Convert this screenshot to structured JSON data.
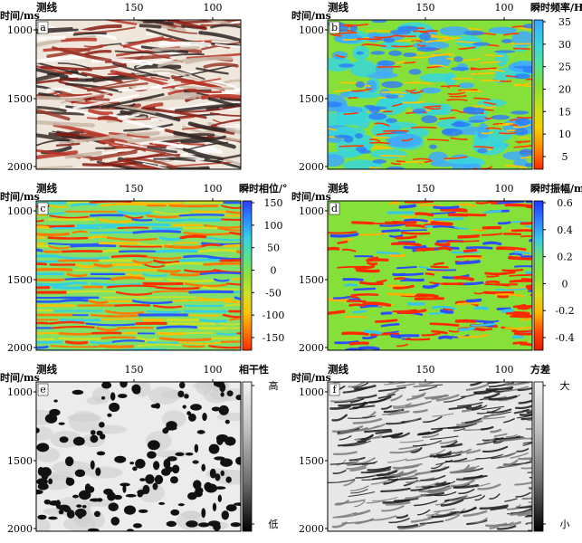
{
  "panels": [
    {
      "id": "a",
      "x_axis_label": "测线",
      "x_ticks": [
        "150",
        "100"
      ],
      "y_axis_label": "时间/ms",
      "y_ticks": [
        "1000",
        "1500",
        "2000"
      ],
      "colorbar": null,
      "style": "seismic"
    },
    {
      "id": "b",
      "x_axis_label": "测线",
      "x_ticks": [
        "150",
        "100"
      ],
      "y_axis_label": "时间/ms",
      "y_ticks": [
        "1000",
        "1500",
        "2000"
      ],
      "colorbar": {
        "title": "瞬时频率/Hz",
        "ticks": [
          "35",
          "30",
          "25",
          "20",
          "15",
          "10",
          "5"
        ],
        "gradient": [
          "#3aa6ff",
          "#38d0e0",
          "#4fe3a0",
          "#7fe03a",
          "#b9e21e",
          "#f2d400",
          "#ff8a00",
          "#ff2a00"
        ]
      },
      "style": "freq"
    },
    {
      "id": "c",
      "x_axis_label": "测线",
      "x_ticks": [
        "150",
        "100"
      ],
      "y_axis_label": "时间/ms",
      "y_ticks": [
        "1000",
        "1500",
        "2000"
      ],
      "colorbar": {
        "title": "瞬时相位/°",
        "ticks": [
          "150",
          "100",
          "50",
          "0",
          "-50",
          "-100",
          "-150"
        ],
        "gradient": [
          "#2a3cff",
          "#2c8cff",
          "#33d2e6",
          "#55e38f",
          "#8ee33a",
          "#cfe022",
          "#ffc400",
          "#ff7a00",
          "#ff2a00"
        ]
      },
      "style": "phase"
    },
    {
      "id": "d",
      "x_axis_label": "测线",
      "x_ticks": [
        "150",
        "100"
      ],
      "y_axis_label": "时间/ms",
      "y_ticks": [
        "1000",
        "1500",
        "2000"
      ],
      "colorbar": {
        "title": "瞬时振幅/m",
        "ticks": [
          "0.6",
          "0.4",
          "0.2",
          "0",
          "-0.2",
          "-0.4"
        ],
        "gradient": [
          "#1f38ff",
          "#2f7cff",
          "#38c6e8",
          "#6fe36a",
          "#8ee33a",
          "#cfe022",
          "#ffb300",
          "#ff4a00",
          "#e51a00"
        ]
      },
      "style": "amp"
    },
    {
      "id": "e",
      "x_axis_label": "测线",
      "x_ticks": [
        "150",
        "100"
      ],
      "y_axis_label": "时间/ms",
      "y_ticks": [
        "1000",
        "1500",
        "2000"
      ],
      "colorbar": {
        "title": "相干性",
        "ticks": [
          "高",
          "低"
        ],
        "gradient": [
          "#f2f2f2",
          "#bdbdbd",
          "#6e6e6e",
          "#000000"
        ]
      },
      "style": "coherence"
    },
    {
      "id": "f",
      "x_axis_label": "测线",
      "x_ticks": [
        "150",
        "100"
      ],
      "y_axis_label": "时间/ms",
      "y_ticks": [
        "1000",
        "1500",
        "2000"
      ],
      "colorbar": {
        "title": "方差",
        "ticks": [
          "大",
          "小"
        ],
        "gradient": [
          "#f2f2f2",
          "#bdbdbd",
          "#6e6e6e",
          "#000000"
        ]
      },
      "style": "variance"
    }
  ]
}
